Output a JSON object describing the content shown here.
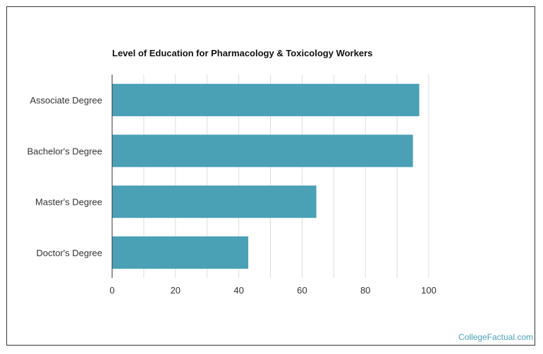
{
  "chart_data": {
    "type": "bar",
    "orientation": "horizontal",
    "title": "Level of Education for Pharmacology & Toxicology Workers",
    "categories": [
      "Associate Degree",
      "Bachelor's Degree",
      "Master's Degree",
      "Doctor's Degree"
    ],
    "values": [
      97,
      95,
      64.5,
      43
    ],
    "xlim": [
      0,
      100
    ],
    "xticks": [
      0,
      20,
      40,
      60,
      80,
      100
    ],
    "xlabel": "",
    "ylabel": "",
    "grid": "vertical",
    "bar_color": "#4aa0b5"
  },
  "watermark": {
    "text": "CollegeFactual.com",
    "color": "#4aa0b5"
  }
}
